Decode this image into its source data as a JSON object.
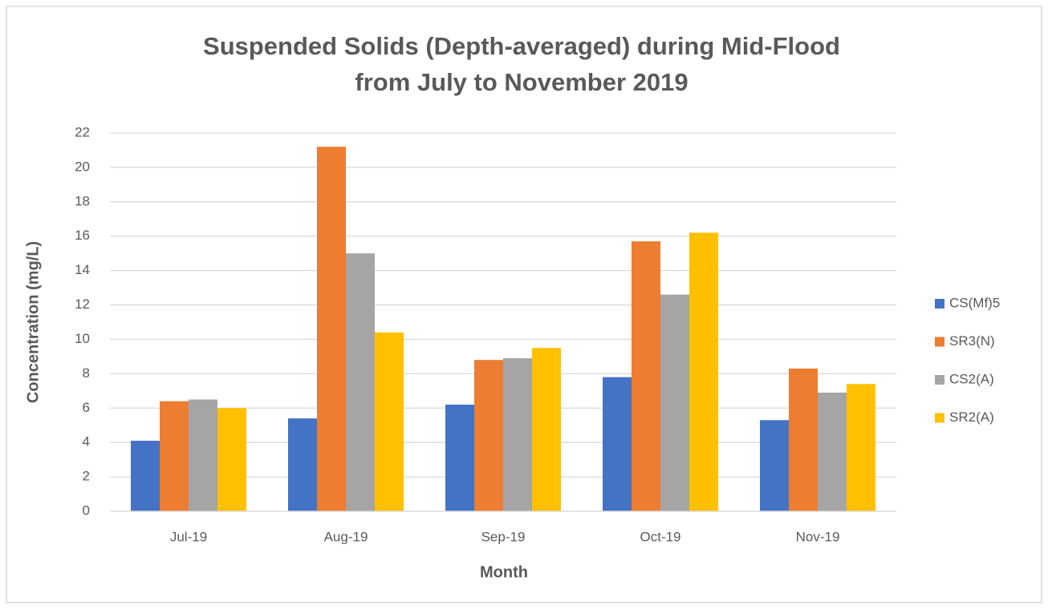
{
  "chart_data": {
    "type": "bar",
    "title": [
      "Suspended Solids (Depth-averaged) during Mid-Flood",
      "from July to November 2019"
    ],
    "x_label": "Month",
    "y_label": "Concentration (mg/L)",
    "categories": [
      "Jul-19",
      "Aug-19",
      "Sep-19",
      "Oct-19",
      "Nov-19"
    ],
    "series": [
      {
        "name": "CS(Mf)5",
        "color": "#4472c4",
        "values": [
          4.1,
          5.4,
          6.2,
          7.8,
          5.3
        ]
      },
      {
        "name": "SR3(N)",
        "color": "#ed7d31",
        "values": [
          6.4,
          21.2,
          8.8,
          15.7,
          8.3
        ]
      },
      {
        "name": "CS2(A)",
        "color": "#a5a5a5",
        "values": [
          6.5,
          15.0,
          8.9,
          12.6,
          6.9
        ]
      },
      {
        "name": "SR2(A)",
        "color": "#ffc000",
        "values": [
          6.0,
          10.4,
          9.5,
          16.2,
          7.4
        ]
      }
    ],
    "ylim": [
      0,
      22
    ],
    "yticks": [
      0,
      2,
      4,
      6,
      8,
      10,
      12,
      14,
      16,
      18,
      20,
      22
    ],
    "grid": true,
    "legend": "right"
  }
}
